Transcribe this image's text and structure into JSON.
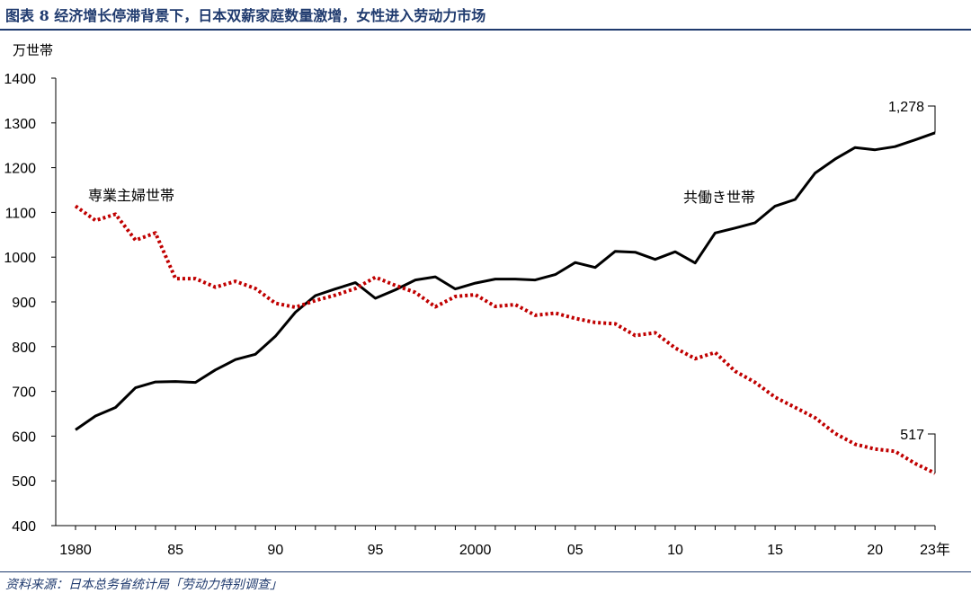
{
  "header": {
    "title": "图表 8  经济增长停滞背景下，日本双薪家庭数量激增，女性进入劳动力市场"
  },
  "footer": {
    "source": "资料来源：日本总务省统计局「劳动力特别调查」"
  },
  "chart_data": {
    "type": "line",
    "title": "",
    "ylabel": "万世帯",
    "xlabel": "",
    "ylim": [
      400,
      1400
    ],
    "yticks": [
      400,
      500,
      600,
      700,
      800,
      900,
      1000,
      1100,
      1200,
      1300,
      1400
    ],
    "xlim": [
      1980,
      2023
    ],
    "xticks": [
      {
        "year": 1980,
        "label": "1980"
      },
      {
        "year": 1985,
        "label": "85"
      },
      {
        "year": 1990,
        "label": "90"
      },
      {
        "year": 1995,
        "label": "95"
      },
      {
        "year": 2000,
        "label": "2000"
      },
      {
        "year": 2005,
        "label": "05"
      },
      {
        "year": 2010,
        "label": "10"
      },
      {
        "year": 2015,
        "label": "15"
      },
      {
        "year": 2020,
        "label": "20"
      },
      {
        "year": 2023,
        "label": "23年"
      }
    ],
    "x": [
      1980,
      1981,
      1982,
      1983,
      1984,
      1985,
      1986,
      1987,
      1988,
      1989,
      1990,
      1991,
      1992,
      1993,
      1994,
      1995,
      1996,
      1997,
      1998,
      1999,
      2000,
      2001,
      2002,
      2003,
      2004,
      2005,
      2006,
      2007,
      2008,
      2009,
      2010,
      2011,
      2012,
      2013,
      2014,
      2015,
      2016,
      2017,
      2018,
      2019,
      2020,
      2021,
      2022,
      2023
    ],
    "series": [
      {
        "name": "共働き世帯",
        "color": "#000000",
        "style": "solid",
        "values": [
          614,
          645,
          664,
          708,
          721,
          722,
          720,
          748,
          771,
          783,
          823,
          877,
          914,
          929,
          943,
          908,
          927,
          949,
          956,
          929,
          942,
          951,
          951,
          949,
          961,
          988,
          977,
          1013,
          1011,
          995,
          1012,
          987,
          1054,
          1065,
          1077,
          1114,
          1129,
          1188,
          1219,
          1245,
          1240,
          1247,
          1262,
          1278
        ],
        "end_label": "1,278"
      },
      {
        "name": "専業主婦世帯",
        "color": "#c00000",
        "style": "dotted",
        "values": [
          1114,
          1082,
          1096,
          1038,
          1054,
          952,
          952,
          933,
          946,
          930,
          897,
          888,
          903,
          915,
          930,
          955,
          937,
          921,
          889,
          912,
          916,
          890,
          894,
          870,
          875,
          863,
          854,
          851,
          825,
          831,
          797,
          773,
          787,
          745,
          720,
          687,
          664,
          641,
          606,
          582,
          571,
          566,
          539,
          517
        ],
        "end_label": "517"
      }
    ]
  }
}
